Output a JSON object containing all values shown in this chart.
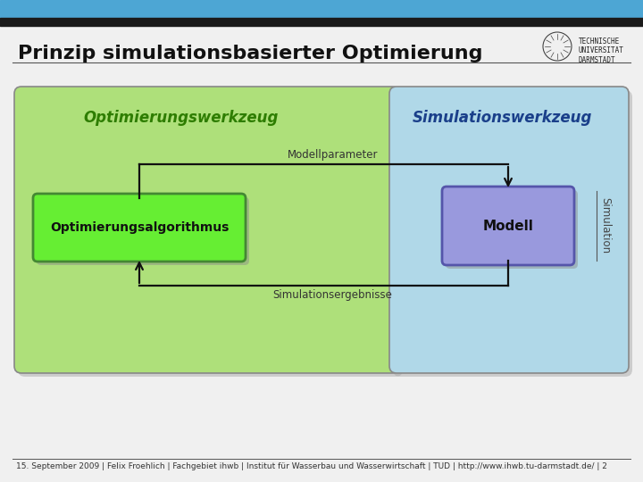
{
  "title": "Prinzip simulationsbasierter Optimierung",
  "title_fontsize": 16,
  "title_color": "#111111",
  "bg_color": "#f0f0f0",
  "slide_bg": "#ffffff",
  "header_bar1_color": "#4da6d4",
  "header_bar2_color": "#1a1a1a",
  "footer_text": "15. September 2009 | Felix Froehlich | Fachgebiet ihwb | Institut für Wasserbau und Wasserwirtschaft | TUD | http://www.ihwb.tu-darmstadt.de/ | 2",
  "footer_fontsize": 6.5,
  "opt_box_label": "Optimierungswerkzeug",
  "opt_box_label_color": "#2e7d00",
  "opt_box_fill": "#aee07a",
  "opt_box_fill2": "#bbee99",
  "opt_box_edge": "#888888",
  "sim_box_label": "Simulationswerkzeug",
  "sim_box_label_color": "#1a3f8a",
  "sim_box_fill": "#b0d8e8",
  "sim_box_fill2": "#c8e8f4",
  "sim_box_edge": "#888888",
  "algo_box_label": "Optimierungsalgorithmus",
  "algo_box_fill": "#66ee33",
  "algo_box_edge": "#448833",
  "modell_box_label": "Modell",
  "modell_box_fill": "#9999dd",
  "modell_box_edge": "#5555aa",
  "modellparameter_label": "Modellparameter",
  "simulationsergebnisse_label": "Simulationsergebnisse",
  "simulation_label": "Simulation",
  "shadow_color": "#aaaaaa",
  "arrow_color": "#111111",
  "line_color": "#111111"
}
